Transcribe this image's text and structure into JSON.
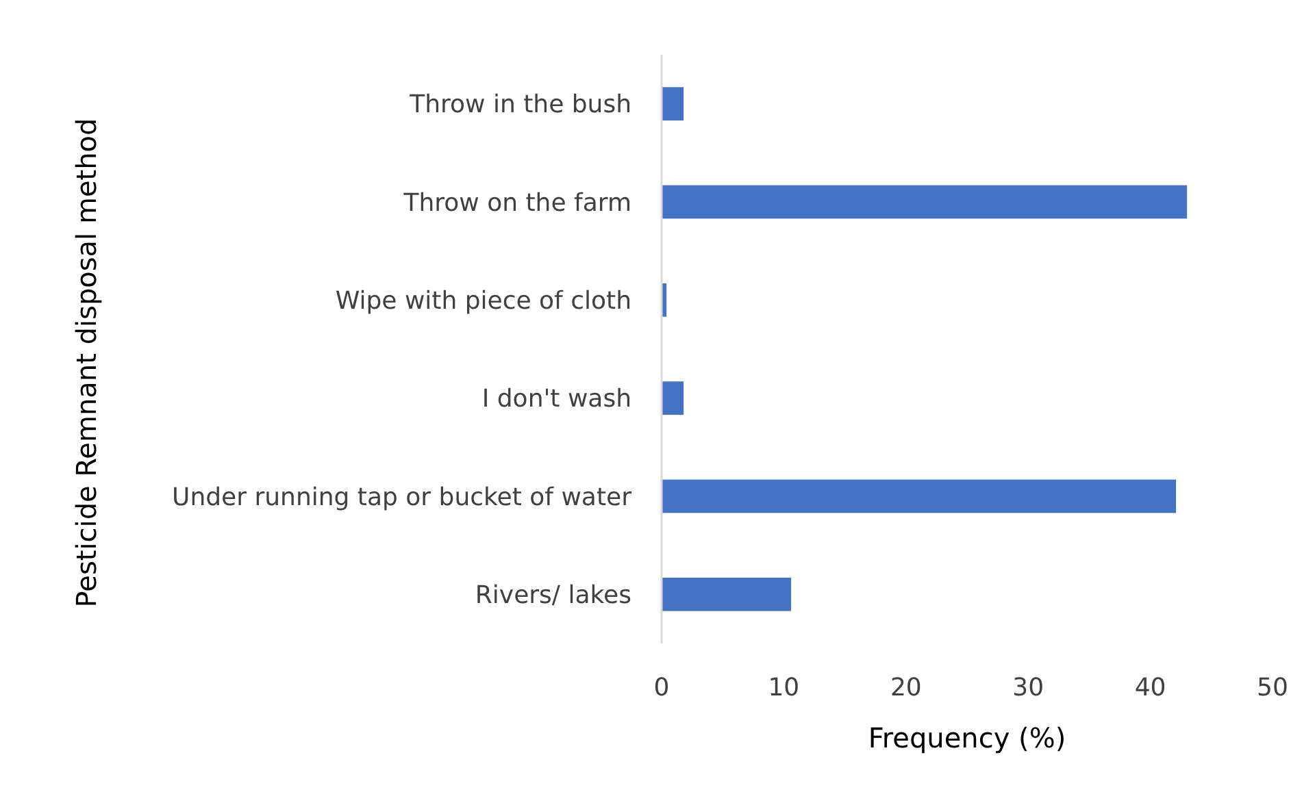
{
  "chart_data": {
    "type": "bar",
    "orientation": "horizontal",
    "xlabel": "Frequency (%)",
    "ylabel": "Pesticide Remnant disposal method",
    "categories": [
      "Throw in the bush",
      "Throw on the farm",
      "Wipe with piece of cloth",
      "I don't wash",
      "Under running tap or bucket of water",
      "Rivers/ lakes"
    ],
    "values": [
      1.8,
      43.0,
      0.4,
      1.8,
      42.1,
      10.6
    ],
    "color": "#4472c4",
    "xlim": [
      0,
      50
    ],
    "xticks": [
      0,
      10,
      20,
      30,
      40,
      50
    ],
    "grid": false
  }
}
